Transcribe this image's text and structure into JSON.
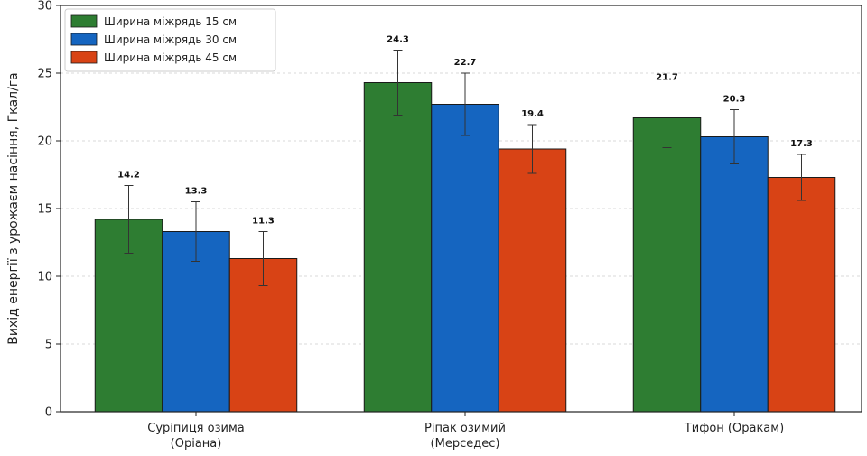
{
  "chart_data": {
    "type": "bar",
    "title": "",
    "xlabel": "",
    "ylabel": "Вихід енергії з урожаєм насіння, Гкал/га",
    "ylim": [
      0,
      30
    ],
    "yticks": [
      0,
      5,
      10,
      15,
      20,
      25,
      30
    ],
    "grid": "horizontal-dashed",
    "legend_position": "top-left",
    "categories": [
      [
        "Суріпиця озима",
        "(Оріана)"
      ],
      [
        "Ріпак озимий",
        "(Мерседес)"
      ],
      [
        "Тифон (Оракам)"
      ]
    ],
    "series": [
      {
        "name": "Ширина міжрядь 15 см",
        "color": "#2e7d32",
        "values": [
          14.2,
          24.3,
          21.7
        ],
        "errors": [
          2.5,
          2.4,
          2.2
        ],
        "labels": [
          "14.2",
          "24.3",
          "21.7"
        ]
      },
      {
        "name": "Ширина міжрядь 30 см",
        "color": "#1565c0",
        "values": [
          13.3,
          22.7,
          20.3
        ],
        "errors": [
          2.2,
          2.3,
          2.0
        ],
        "labels": [
          "13.3",
          "22.7",
          "20.3"
        ]
      },
      {
        "name": "Ширина міжрядь 45 см",
        "color": "#d84315",
        "values": [
          11.3,
          19.4,
          17.3
        ],
        "errors": [
          2.0,
          1.8,
          1.7
        ],
        "labels": [
          "11.3",
          "19.4",
          "17.3"
        ]
      }
    ]
  }
}
